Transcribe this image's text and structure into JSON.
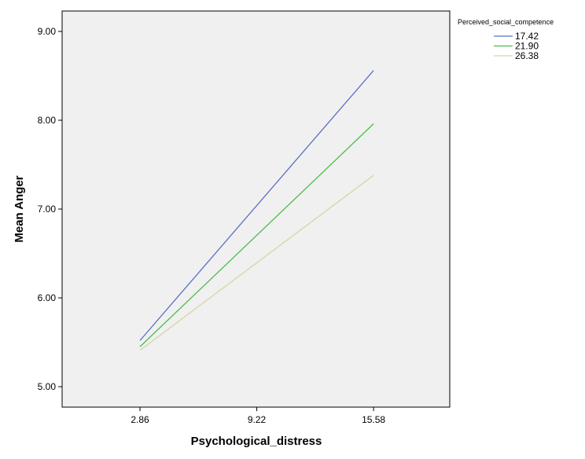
{
  "chart_data": {
    "type": "line",
    "x_label": "Psychological_distress",
    "y_label": "Mean Anger",
    "legend_title": "Perceived_social_competence",
    "x": [
      2.86,
      15.58
    ],
    "series": [
      {
        "name": "17.42",
        "color": "#5b6fc4",
        "values": [
          5.52,
          8.56
        ]
      },
      {
        "name": "21.90",
        "color": "#4dbb4d",
        "values": [
          5.45,
          7.96
        ]
      },
      {
        "name": "26.38",
        "color": "#d8d4a8",
        "values": [
          5.41,
          7.38
        ]
      }
    ],
    "xlim": [
      -1.38,
      19.73
    ],
    "xticks": [
      2.86,
      9.22,
      15.58
    ],
    "ylim": [
      4.77,
      9.23
    ],
    "yticks": [
      {
        "value": 5,
        "label": "5.00"
      },
      {
        "value": 6,
        "label": "6.00"
      },
      {
        "value": 7,
        "label": "7.00"
      },
      {
        "value": 8,
        "label": "8.00"
      },
      {
        "value": 9,
        "label": "9.00"
      }
    ],
    "legend_position": "top-right"
  }
}
